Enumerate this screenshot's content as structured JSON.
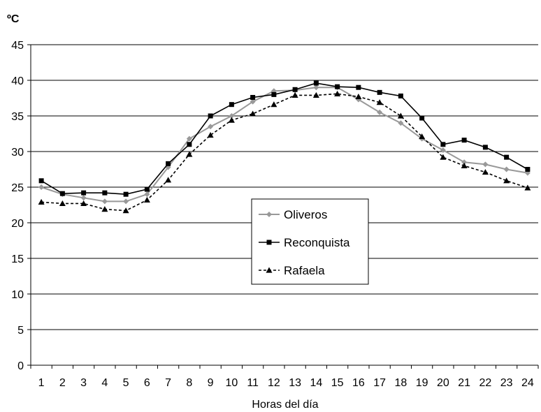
{
  "chart_data": {
    "type": "line",
    "title": "",
    "unit_label": "ºC",
    "xlabel": "Horas del día",
    "ylabel": "",
    "x": [
      1,
      2,
      3,
      4,
      5,
      6,
      7,
      8,
      9,
      10,
      11,
      12,
      13,
      14,
      15,
      16,
      17,
      18,
      19,
      20,
      21,
      22,
      23,
      24
    ],
    "ylim": [
      0,
      45
    ],
    "yticks": [
      0,
      5,
      10,
      15,
      20,
      25,
      30,
      35,
      40,
      45
    ],
    "grid": true,
    "legend_position": "center-right",
    "series": [
      {
        "name": "Oliveros",
        "color": "#999999",
        "marker": "diamond",
        "line_style": "solid",
        "values": [
          25.0,
          24.0,
          23.5,
          23.0,
          23.0,
          24.0,
          27.8,
          31.8,
          33.5,
          35.0,
          37.0,
          38.5,
          38.6,
          39.0,
          39.0,
          37.3,
          35.5,
          34.0,
          31.8,
          30.2,
          28.5,
          28.2,
          27.5,
          27.0
        ]
      },
      {
        "name": "Reconquista",
        "color": "#000000",
        "marker": "square",
        "line_style": "solid",
        "values": [
          25.9,
          24.1,
          24.2,
          24.2,
          24.0,
          24.7,
          28.3,
          31.0,
          35.0,
          36.6,
          37.6,
          38.0,
          38.7,
          39.6,
          39.1,
          39.0,
          38.3,
          37.8,
          34.7,
          31.0,
          31.6,
          30.6,
          29.2,
          27.5
        ]
      },
      {
        "name": "Rafaela",
        "color": "#000000",
        "marker": "triangle",
        "line_style": "dashed",
        "values": [
          22.9,
          22.7,
          22.7,
          21.9,
          21.7,
          23.2,
          26.0,
          29.6,
          32.3,
          34.4,
          35.3,
          36.6,
          37.9,
          37.9,
          38.1,
          37.7,
          36.9,
          35.0,
          32.1,
          29.2,
          28.0,
          27.1,
          25.9,
          24.9
        ]
      }
    ]
  }
}
